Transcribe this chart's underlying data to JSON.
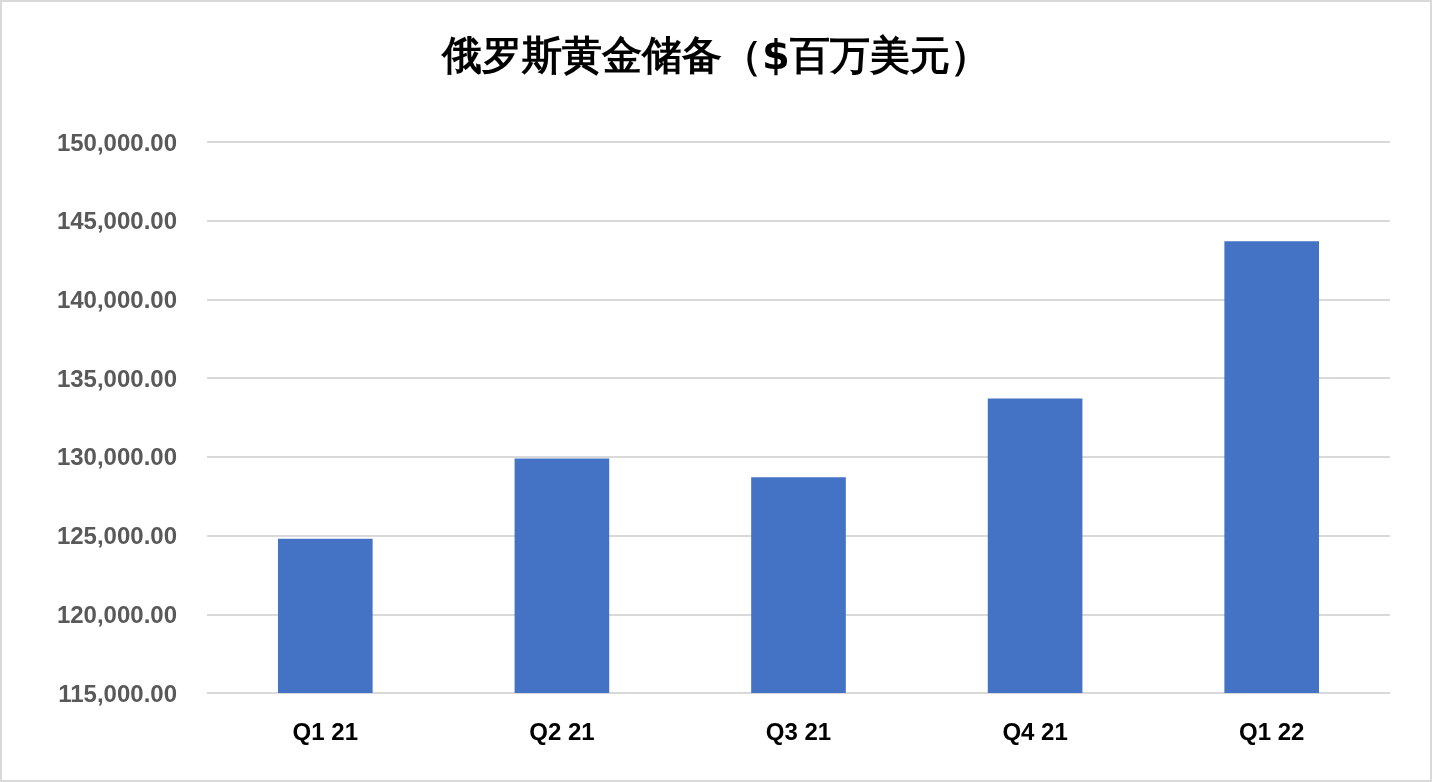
{
  "chart_data": {
    "type": "bar",
    "title": "俄罗斯黄金储备（$百万美元）",
    "categories": [
      "Q1 21",
      "Q2 21",
      "Q3 21",
      "Q4 21",
      "Q1 22"
    ],
    "values": [
      124800,
      129900,
      128700,
      133700,
      143700
    ],
    "color": "#4472c4",
    "ylim": [
      115000,
      150000
    ],
    "yticks": [
      {
        "value": 115000,
        "label": "115,000.00"
      },
      {
        "value": 120000,
        "label": "120,000.00"
      },
      {
        "value": 125000,
        "label": "125,000.00"
      },
      {
        "value": 130000,
        "label": "130,000.00"
      },
      {
        "value": 135000,
        "label": "135,000.00"
      },
      {
        "value": 140000,
        "label": "140,000.00"
      },
      {
        "value": 145000,
        "label": "145,000.00"
      },
      {
        "value": 150000,
        "label": "150,000.00"
      }
    ],
    "grid": "y"
  }
}
